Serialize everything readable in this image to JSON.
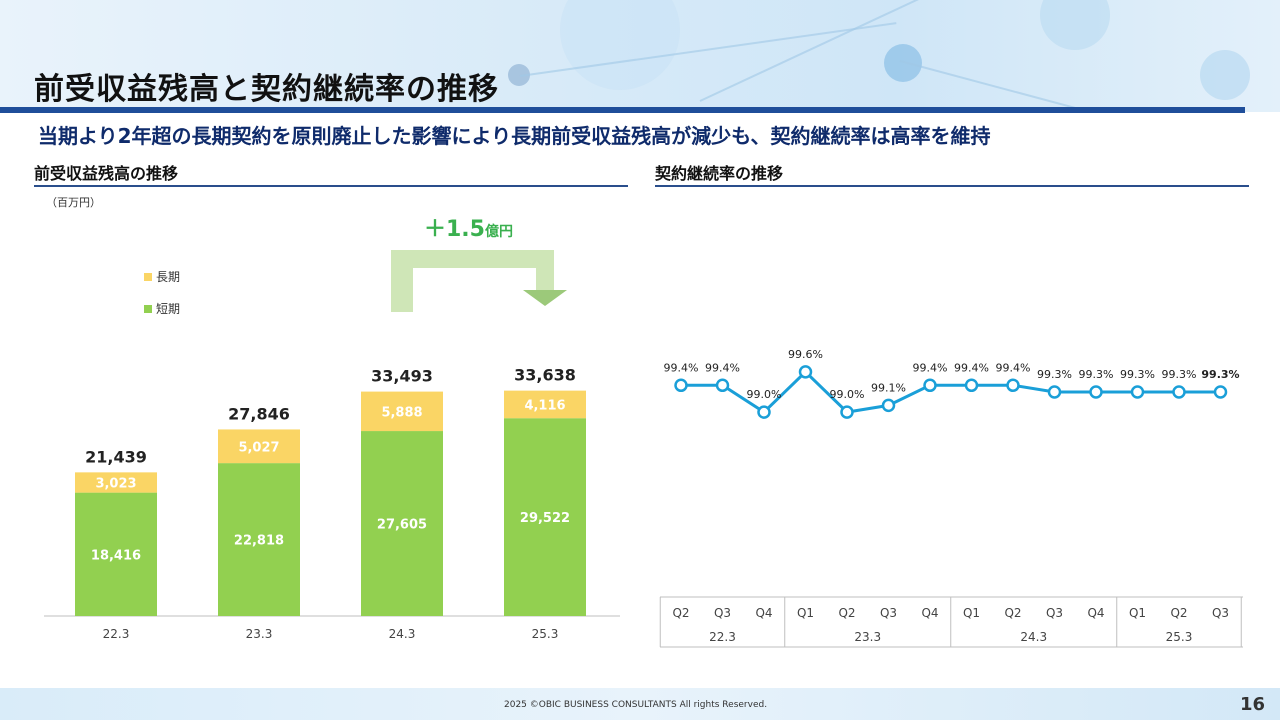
{
  "slide": {
    "title": "前受収益残高と契約継続率の推移",
    "subtitle": "当期より2年超の長期契約を原則廃止した影響により長期前受収益残高が減少も、契約継続率は高率を維持",
    "footer": "2025 ©OBIC BUSINESS CONSULTANTS All rights Reserved.",
    "page_number": "16"
  },
  "left_panel": {
    "title": "前受収益残高の推移",
    "unit": "（百万円）",
    "gain_value": "＋1.5",
    "gain_unit": "億円",
    "legend": [
      {
        "label": "長期",
        "color": "#fad565"
      },
      {
        "label": "短期",
        "color": "#92d050"
      }
    ]
  },
  "right_panel": {
    "title": "契約継続率の推移"
  },
  "chart_data": [
    {
      "type": "bar",
      "stacked": true,
      "unit": "（百万円）",
      "categories": [
        "22.3",
        "23.3",
        "24.3",
        "25.3"
      ],
      "series": [
        {
          "name": "短期",
          "color": "#92d050",
          "values": [
            18416,
            22818,
            27605,
            29522
          ]
        },
        {
          "name": "長期",
          "color": "#fad565",
          "values": [
            3023,
            5027,
            5888,
            4116
          ]
        }
      ],
      "totals": [
        21439,
        27846,
        33493,
        33638
      ],
      "annotation": "＋1.5億円",
      "ylim": [
        0,
        36000
      ],
      "legend": "left"
    },
    {
      "type": "line",
      "color": "#1a9fd8",
      "quarters": [
        "Q2",
        "Q3",
        "Q4",
        "Q1",
        "Q2",
        "Q3",
        "Q4",
        "Q1",
        "Q2",
        "Q3",
        "Q4",
        "Q1",
        "Q2",
        "Q3"
      ],
      "years": [
        {
          "label": "22.3",
          "count": 3
        },
        {
          "label": "23.3",
          "count": 4
        },
        {
          "label": "24.3",
          "count": 4
        },
        {
          "label": "25.3",
          "count": 3
        }
      ],
      "values": [
        99.4,
        99.4,
        99.0,
        99.6,
        99.0,
        99.1,
        99.4,
        99.4,
        99.4,
        99.3,
        99.3,
        99.3,
        99.3,
        99.3
      ],
      "labels": [
        "99.4%",
        "99.4%",
        "99.0%",
        "99.6%",
        "99.0%",
        "99.1%",
        "99.4%",
        "99.4%",
        "99.4%",
        "99.3%",
        "99.3%",
        "99.3%",
        "99.3%",
        "99.3%"
      ],
      "grid": false
    }
  ]
}
